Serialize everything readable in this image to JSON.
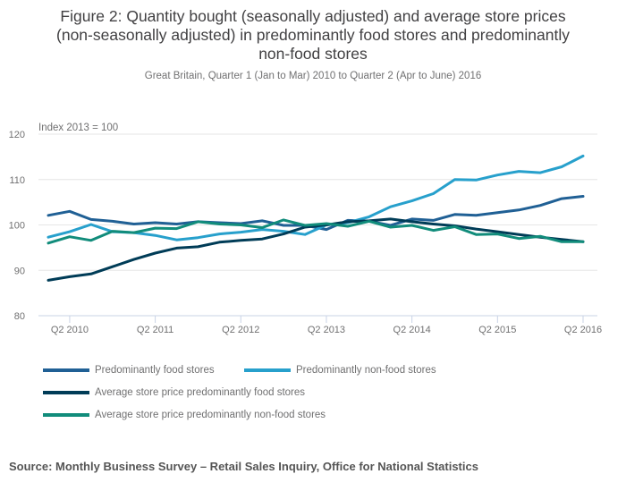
{
  "chart_data": {
    "type": "line",
    "title": "Figure 2: Quantity bought (seasonally adjusted) and average store prices (non-seasonally adjusted) in predominantly food stores and predominantly non-food stores",
    "title_lines": [
      "Figure 2: Quantity bought (seasonally adjusted) and average store prices",
      "(non-seasonally adjusted) in predominantly food stores and predominantly",
      "non-food stores"
    ],
    "subtitle": "Great Britain, Quarter 1 (Jan to Mar) 2010 to Quarter 2 (Apr to June) 2016",
    "ylabel": "Index 2013 = 100",
    "xlabel": "",
    "ylim": [
      80,
      120
    ],
    "yticks": [
      80,
      90,
      100,
      110,
      120
    ],
    "grid": true,
    "legend_position": "bottom",
    "x": [
      "Q1 2010",
      "Q2 2010",
      "Q3 2010",
      "Q4 2010",
      "Q1 2011",
      "Q2 2011",
      "Q3 2011",
      "Q4 2011",
      "Q1 2012",
      "Q2 2012",
      "Q3 2012",
      "Q4 2012",
      "Q1 2013",
      "Q2 2013",
      "Q3 2013",
      "Q4 2013",
      "Q1 2014",
      "Q2 2014",
      "Q3 2014",
      "Q4 2014",
      "Q1 2015",
      "Q2 2015",
      "Q3 2015",
      "Q4 2015",
      "Q1 2016",
      "Q2 2016"
    ],
    "xticks": [
      {
        "label": "Q2 2010",
        "index": 1
      },
      {
        "label": "Q2 2011",
        "index": 5
      },
      {
        "label": "Q2 2012",
        "index": 9
      },
      {
        "label": "Q2 2013",
        "index": 13
      },
      {
        "label": "Q2 2014",
        "index": 17
      },
      {
        "label": "Q2 2015",
        "index": 21
      },
      {
        "label": "Q2 2016",
        "index": 25
      }
    ],
    "series": [
      {
        "name": "Predominantly food stores",
        "color": "#206095",
        "values": [
          102.1,
          103.0,
          101.2,
          100.8,
          100.2,
          100.5,
          100.2,
          100.7,
          100.5,
          100.3,
          100.9,
          99.9,
          99.9,
          99.0,
          101.0,
          100.8,
          99.9,
          101.3,
          101.0,
          102.3,
          102.1,
          102.7,
          103.3,
          104.3,
          105.8,
          106.3
        ]
      },
      {
        "name": "Predominantly non-food stores",
        "color": "#27a0cc",
        "values": [
          97.3,
          98.5,
          100.1,
          98.5,
          98.3,
          97.7,
          96.7,
          97.2,
          98.0,
          98.4,
          99.0,
          98.6,
          97.9,
          100.0,
          100.5,
          101.8,
          104.0,
          105.3,
          106.9,
          110.0,
          109.9,
          111.0,
          111.8,
          111.5,
          112.8,
          115.2
        ]
      },
      {
        "name": "Average store price predominantly food stores",
        "color": "#003c57",
        "values": [
          87.8,
          88.6,
          89.2,
          90.8,
          92.4,
          93.8,
          94.9,
          95.2,
          96.2,
          96.6,
          96.9,
          98.0,
          99.5,
          100.0,
          100.7,
          100.9,
          101.3,
          100.7,
          100.2,
          99.8,
          99.1,
          98.5,
          97.9,
          97.3,
          96.8,
          96.3
        ]
      },
      {
        "name": "Average store price predominantly non-food stores",
        "color": "#118c7b",
        "values": [
          96.0,
          97.4,
          96.6,
          98.6,
          98.3,
          99.3,
          99.2,
          100.7,
          100.2,
          100.0,
          99.4,
          101.1,
          99.9,
          100.3,
          99.7,
          100.8,
          99.5,
          99.9,
          98.8,
          99.6,
          97.9,
          98.0,
          97.0,
          97.5,
          96.3,
          96.3
        ]
      }
    ]
  },
  "legend": [
    {
      "label": "Predominantly food stores",
      "color": "#206095"
    },
    {
      "label": "Predominantly non-food stores",
      "color": "#27a0cc"
    },
    {
      "label": "Average store price predominantly food stores",
      "color": "#003c57"
    },
    {
      "label": "Average store price predominantly non-food stores",
      "color": "#118c7b"
    }
  ],
  "source": "Source: Monthly Business Survey – Retail Sales Inquiry, Office for National Statistics"
}
